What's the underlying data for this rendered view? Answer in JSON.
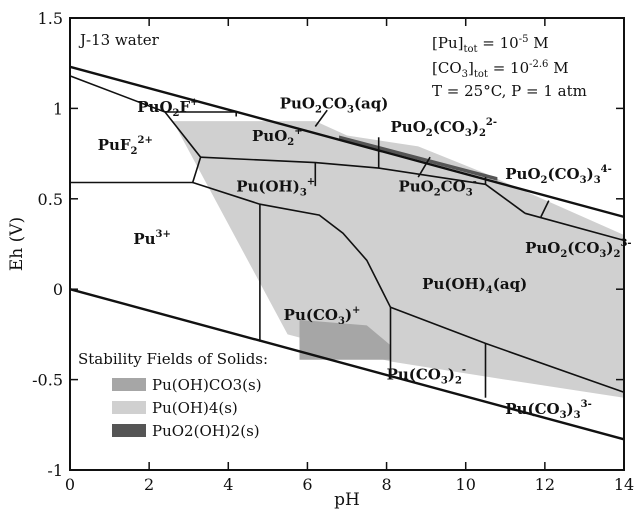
{
  "chart_data": {
    "type": "diagram",
    "xlabel": "pH",
    "ylabel": "Eh (V)",
    "xlim": [
      0,
      14
    ],
    "ylim": [
      -1,
      1.5
    ],
    "xticks": [
      0,
      2,
      4,
      6,
      8,
      10,
      12,
      14
    ],
    "yticks": [
      -1,
      -0.5,
      0,
      0.5,
      1,
      1.5
    ],
    "xtick_labels": [
      "0",
      "2",
      "4",
      "6",
      "8",
      "10",
      "12",
      "14"
    ],
    "ytick_labels": [
      "-1",
      "-0.5",
      "0",
      "0.5",
      "1",
      "1.5"
    ],
    "corner_label": "J-13 water",
    "conditions": {
      "pu_tot": {
        "prefix": "[Pu]",
        "sub": "tot",
        "eq": " = 10",
        "exp": "-5",
        "unit": " M"
      },
      "co3_tot": {
        "prefix": "[CO",
        "sub3": "3",
        "mid": "]",
        "sub": "tot",
        "eq": " = 10",
        "exp": "-2.6",
        "unit": " M"
      },
      "temp_pressure": "T = 25°C,  P = 1 atm"
    },
    "water_lines": {
      "upper": {
        "x": [
          0,
          14
        ],
        "y": [
          1.23,
          0.4
        ]
      },
      "lower": {
        "x": [
          0,
          14
        ],
        "y": [
          0.0,
          -0.83
        ]
      }
    },
    "boundaries": [
      {
        "x": [
          0,
          2.4,
          3.3,
          3.1,
          4.8
        ],
        "y": [
          1.18,
          0.98,
          0.73,
          0.59,
          0.47
        ]
      },
      {
        "x": [
          0,
          3.1
        ],
        "y": [
          0.59,
          0.59
        ]
      },
      {
        "x": [
          2.4,
          4.2
        ],
        "y": [
          0.98,
          0.98
        ]
      },
      {
        "x": [
          4.2,
          4.2
        ],
        "y": [
          0.98,
          0.955
        ]
      },
      {
        "x": [
          3.3,
          6.2,
          7.8,
          10.5
        ],
        "y": [
          0.73,
          0.7,
          0.67,
          0.58
        ]
      },
      {
        "x": [
          6.2,
          6.2
        ],
        "y": [
          0.7,
          0.57
        ]
      },
      {
        "x": [
          7.8,
          7.8
        ],
        "y": [
          0.84,
          0.67
        ]
      },
      {
        "x": [
          10.5,
          10.5
        ],
        "y": [
          0.62,
          0.58
        ]
      },
      {
        "x": [
          4.8,
          6.3,
          6.9,
          7.5,
          8.1
        ],
        "y": [
          0.47,
          0.41,
          0.31,
          0.16,
          -0.1
        ]
      },
      {
        "x": [
          4.8,
          4.8
        ],
        "y": [
          0.47,
          -0.29
        ]
      },
      {
        "x": [
          10.5,
          11.5
        ],
        "y": [
          0.58,
          0.42
        ]
      },
      {
        "x": [
          11.5,
          14.0
        ],
        "y": [
          0.42,
          0.27
        ]
      },
      {
        "x": [
          8.1,
          10.5,
          14.0
        ],
        "y": [
          -0.1,
          -0.3,
          -0.57
        ]
      },
      {
        "x": [
          8.1,
          8.1
        ],
        "y": [
          -0.1,
          -0.44
        ]
      },
      {
        "x": [
          10.5,
          10.5
        ],
        "y": [
          -0.3,
          -0.6
        ]
      }
    ],
    "leader_lines": [
      {
        "x": [
          6.2,
          6.5
        ],
        "y": [
          0.9,
          0.99
        ]
      },
      {
        "x": [
          8.8,
          9.1
        ],
        "y": [
          0.62,
          0.73
        ]
      },
      {
        "x": [
          11.9,
          12.1
        ],
        "y": [
          0.4,
          0.49
        ]
      }
    ],
    "solid_fields": [
      {
        "name": "Pu(OH)4(s)",
        "shade": "#d0d0d0",
        "x": [
          2.6,
          6.2,
          7.0,
          8.8,
          10.5,
          10.9,
          14.0,
          14.0,
          11.0,
          8.1,
          5.5
        ],
        "y": [
          0.93,
          0.93,
          0.85,
          0.79,
          0.64,
          0.6,
          0.3,
          -0.6,
          -0.5,
          -0.4,
          -0.25
        ]
      },
      {
        "name": "Pu(OH)CO3(s)",
        "shade": "#a6a6a6",
        "x": [
          5.8,
          7.5,
          8.1,
          8.1,
          5.8
        ],
        "y": [
          -0.17,
          -0.2,
          -0.31,
          -0.39,
          -0.39
        ]
      },
      {
        "name": "PuO2(OH)2(s)",
        "shade": "#555555",
        "x": [
          6.8,
          10.8,
          10.8,
          6.8
        ],
        "y": [
          0.85,
          0.62,
          0.6,
          0.83
        ]
      }
    ],
    "fields": [
      {
        "label": "PuO2F+",
        "pos": [
          1.7,
          0.98
        ]
      },
      {
        "label": "PuO2CO3(aq)",
        "pos": [
          5.3,
          1.0
        ]
      },
      {
        "label": "PuF22+",
        "pos": [
          0.7,
          0.77
        ]
      },
      {
        "label": "PuO2+",
        "pos": [
          4.6,
          0.82
        ]
      },
      {
        "label": "PuO2(CO3)22-",
        "pos": [
          8.1,
          0.87
        ]
      },
      {
        "label": "PuO2(CO3)34-",
        "pos": [
          11.0,
          0.61
        ]
      },
      {
        "label": "Pu(OH)3+",
        "pos": [
          4.2,
          0.54
        ]
      },
      {
        "label": "PuO2CO3-",
        "pos": [
          8.3,
          0.54
        ]
      },
      {
        "label": "Pu3+",
        "pos": [
          1.6,
          0.25
        ]
      },
      {
        "label": "PuO2(CO3)23-",
        "pos": [
          11.5,
          0.2
        ]
      },
      {
        "label": "Pu(OH)4(aq)",
        "pos": [
          8.9,
          0.0
        ]
      },
      {
        "label": "Pu(CO3)+",
        "pos": [
          5.4,
          -0.17
        ]
      },
      {
        "label": "Pu(CO3)2-",
        "pos": [
          8.0,
          -0.5
        ]
      },
      {
        "label": "Pu(CO3)33-",
        "pos": [
          11.0,
          -0.69
        ]
      }
    ],
    "legend": {
      "title": "Stability Fields of Solids:",
      "placement": "bottom-left",
      "items": [
        {
          "label": "Pu(OH)CO3(s)",
          "shade": "#a6a6a6"
        },
        {
          "label": "Pu(OH)4(s)",
          "shade": "#d0d0d0"
        },
        {
          "label": "PuO2(OH)2(s)",
          "shade": "#555555"
        }
      ]
    }
  }
}
